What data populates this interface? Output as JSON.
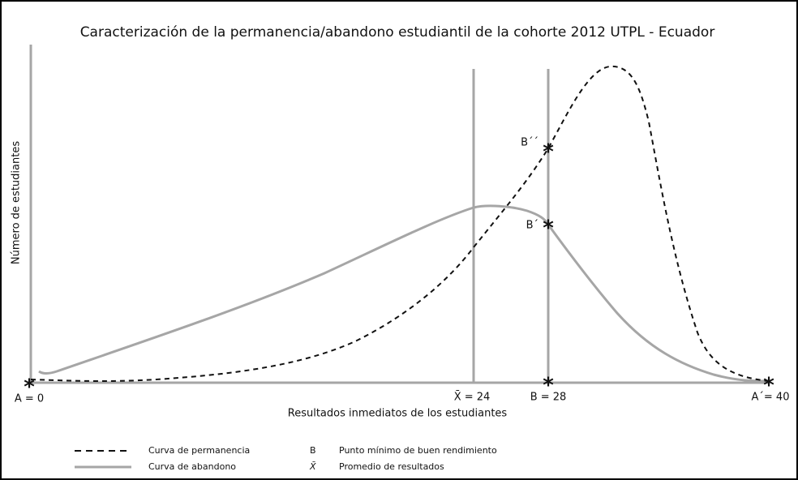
{
  "title": "Caracterización de la permanencia/abandono estudiantil de la cohorte 2012  UTPL - Ecuador",
  "y_label": "Número de estudiantes",
  "x_label": "Resultados inmediatos de los estudiantes",
  "points": {
    "a": "A = 0",
    "x_bar": "X̄ = 24",
    "b": "B = 28",
    "a_prime": "A´= 40",
    "b_double_prime": "B´´",
    "b_prime": "B´"
  },
  "legend": [
    {
      "label": "Curva de permanencia",
      "key": "B",
      "description": "Punto mínimo de buen rendimiento"
    },
    {
      "label": "Curva de abandono",
      "key": "X̄",
      "description": "Promedio de resultados"
    }
  ]
}
